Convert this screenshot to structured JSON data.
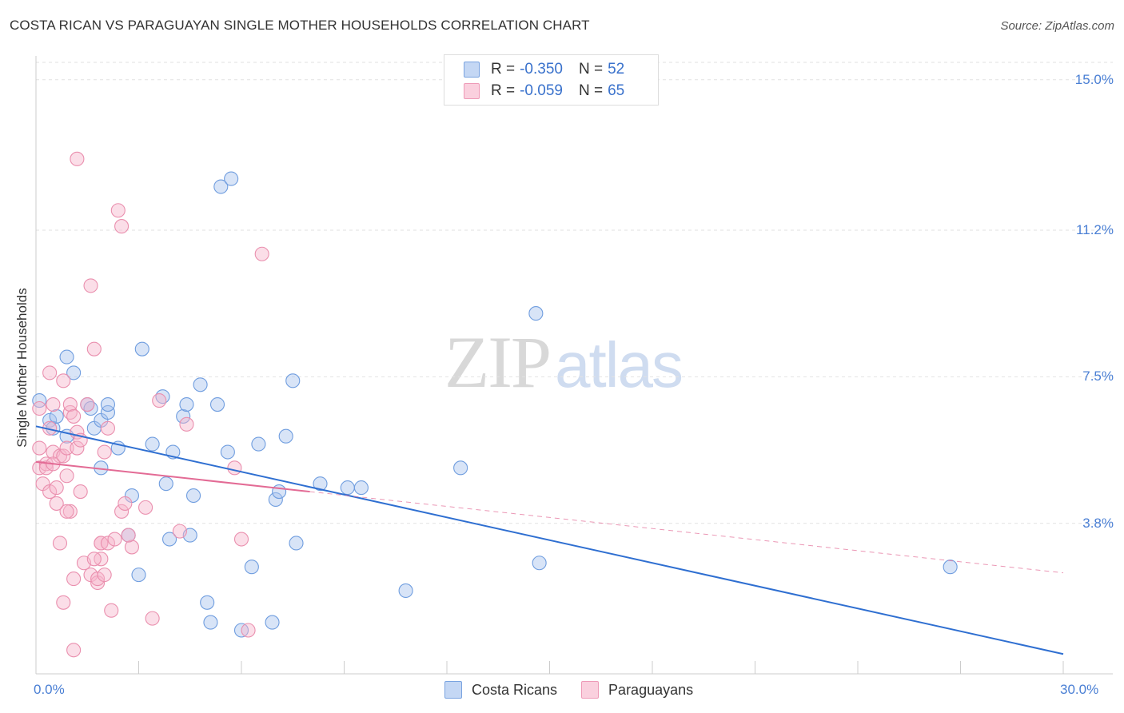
{
  "title": "COSTA RICAN VS PARAGUAYAN SINGLE MOTHER HOUSEHOLDS CORRELATION CHART",
  "source": "Source: ZipAtlas.com",
  "watermark": {
    "zip": "ZIP",
    "atlas": "atlas"
  },
  "legend": {
    "rows": [
      {
        "r_label": "R = ",
        "r_value": "-0.350",
        "n_label": "N = ",
        "n_value": "52",
        "color": "#a9c4ee"
      },
      {
        "r_label": "R = ",
        "r_value": "-0.059",
        "n_label": "N = ",
        "n_value": "65",
        "color": "#f6b6cb"
      }
    ]
  },
  "bottom_legend": [
    "Costa Ricans",
    "Paraguayans"
  ],
  "chart_data": {
    "type": "scatter",
    "title": "COSTA RICAN VS PARAGUAYAN SINGLE MOTHER HOUSEHOLDS CORRELATION CHART",
    "xlabel": "",
    "ylabel": "Single Mother Households",
    "xlim": [
      0,
      30
    ],
    "ylim": [
      0,
      15.6
    ],
    "x_tick_labels": [
      "0.0%",
      "30.0%"
    ],
    "y_ticks": [
      3.8,
      7.5,
      11.2,
      15.0
    ],
    "y_tick_labels": [
      "3.8%",
      "7.5%",
      "11.2%",
      "15.0%"
    ],
    "grid": "horizontal dashed",
    "legend_position": "top-center",
    "series": [
      {
        "name": "Costa Ricans",
        "color": "#a9c4ee",
        "stroke": "#6f9ddf",
        "trend": {
          "x": [
            0,
            30
          ],
          "y": [
            6.25,
            0.5
          ],
          "style": "solid",
          "color": "#2f6fd1"
        },
        "points": [
          [
            0.1,
            6.9
          ],
          [
            0.4,
            6.4
          ],
          [
            0.5,
            6.2
          ],
          [
            0.6,
            6.5
          ],
          [
            0.9,
            6.0
          ],
          [
            0.9,
            8.0
          ],
          [
            1.1,
            7.6
          ],
          [
            1.5,
            6.8
          ],
          [
            1.6,
            6.7
          ],
          [
            1.7,
            6.2
          ],
          [
            1.9,
            5.2
          ],
          [
            1.9,
            6.4
          ],
          [
            2.1,
            6.6
          ],
          [
            2.1,
            6.8
          ],
          [
            2.4,
            5.7
          ],
          [
            2.7,
            3.5
          ],
          [
            2.8,
            4.5
          ],
          [
            3.0,
            2.5
          ],
          [
            3.1,
            8.2
          ],
          [
            3.4,
            5.8
          ],
          [
            3.7,
            7.0
          ],
          [
            3.8,
            4.8
          ],
          [
            3.9,
            3.4
          ],
          [
            4.0,
            5.6
          ],
          [
            4.3,
            6.5
          ],
          [
            4.4,
            6.8
          ],
          [
            4.5,
            3.5
          ],
          [
            4.6,
            4.5
          ],
          [
            4.8,
            7.3
          ],
          [
            5.0,
            1.8
          ],
          [
            5.1,
            1.3
          ],
          [
            5.3,
            6.8
          ],
          [
            5.4,
            12.3
          ],
          [
            5.6,
            5.6
          ],
          [
            5.7,
            12.5
          ],
          [
            6.0,
            1.1
          ],
          [
            6.3,
            2.7
          ],
          [
            6.5,
            5.8
          ],
          [
            6.9,
            1.3
          ],
          [
            7.0,
            4.4
          ],
          [
            7.1,
            4.6
          ],
          [
            7.3,
            6.0
          ],
          [
            7.5,
            7.4
          ],
          [
            7.6,
            3.3
          ],
          [
            8.3,
            4.8
          ],
          [
            9.1,
            4.7
          ],
          [
            9.5,
            4.7
          ],
          [
            10.8,
            2.1
          ],
          [
            12.4,
            5.2
          ],
          [
            14.6,
            9.1
          ],
          [
            14.7,
            2.8
          ],
          [
            26.7,
            2.7
          ]
        ]
      },
      {
        "name": "Paraguayans",
        "color": "#f6b6cb",
        "stroke": "#ea8fae",
        "trend_solid": {
          "x": [
            0,
            8.0
          ],
          "y": [
            5.35,
            4.6
          ],
          "style": "solid",
          "color": "#e36b95"
        },
        "trend_dashed": {
          "x": [
            8.0,
            30
          ],
          "y": [
            4.6,
            2.55
          ],
          "style": "dashed",
          "color": "#e36b95"
        },
        "points": [
          [
            0.1,
            6.7
          ],
          [
            0.1,
            5.7
          ],
          [
            0.1,
            5.2
          ],
          [
            0.2,
            4.8
          ],
          [
            0.3,
            5.3
          ],
          [
            0.3,
            5.2
          ],
          [
            0.4,
            4.6
          ],
          [
            0.4,
            7.6
          ],
          [
            0.4,
            6.2
          ],
          [
            0.5,
            6.8
          ],
          [
            0.5,
            5.6
          ],
          [
            0.6,
            4.7
          ],
          [
            0.6,
            4.3
          ],
          [
            0.7,
            3.3
          ],
          [
            0.7,
            5.5
          ],
          [
            0.8,
            5.5
          ],
          [
            0.8,
            7.4
          ],
          [
            0.8,
            1.8
          ],
          [
            0.9,
            5.0
          ],
          [
            0.9,
            5.7
          ],
          [
            1.0,
            6.6
          ],
          [
            1.0,
            4.1
          ],
          [
            1.0,
            6.8
          ],
          [
            1.1,
            6.5
          ],
          [
            1.1,
            2.4
          ],
          [
            1.1,
            0.6
          ],
          [
            1.2,
            5.7
          ],
          [
            1.2,
            6.1
          ],
          [
            1.2,
            13.0
          ],
          [
            1.3,
            4.6
          ],
          [
            1.4,
            2.8
          ],
          [
            1.5,
            6.8
          ],
          [
            1.6,
            2.5
          ],
          [
            1.6,
            9.8
          ],
          [
            1.7,
            8.2
          ],
          [
            1.8,
            2.3
          ],
          [
            1.8,
            2.4
          ],
          [
            1.9,
            2.9
          ],
          [
            1.9,
            3.3
          ],
          [
            1.9,
            3.3
          ],
          [
            2.0,
            5.6
          ],
          [
            2.0,
            2.5
          ],
          [
            2.1,
            6.2
          ],
          [
            2.1,
            3.3
          ],
          [
            2.2,
            1.6
          ],
          [
            2.3,
            3.4
          ],
          [
            2.4,
            11.7
          ],
          [
            2.5,
            11.3
          ],
          [
            2.5,
            4.1
          ],
          [
            2.6,
            4.3
          ],
          [
            2.8,
            3.2
          ],
          [
            3.2,
            4.2
          ],
          [
            3.4,
            1.4
          ],
          [
            3.6,
            6.9
          ],
          [
            4.2,
            3.6
          ],
          [
            4.4,
            6.3
          ],
          [
            5.8,
            5.2
          ],
          [
            6.0,
            3.4
          ],
          [
            6.2,
            1.1
          ],
          [
            6.6,
            10.6
          ],
          [
            2.7,
            3.5
          ],
          [
            1.3,
            5.9
          ],
          [
            0.5,
            5.3
          ],
          [
            1.7,
            2.9
          ],
          [
            0.9,
            4.1
          ]
        ]
      }
    ]
  }
}
